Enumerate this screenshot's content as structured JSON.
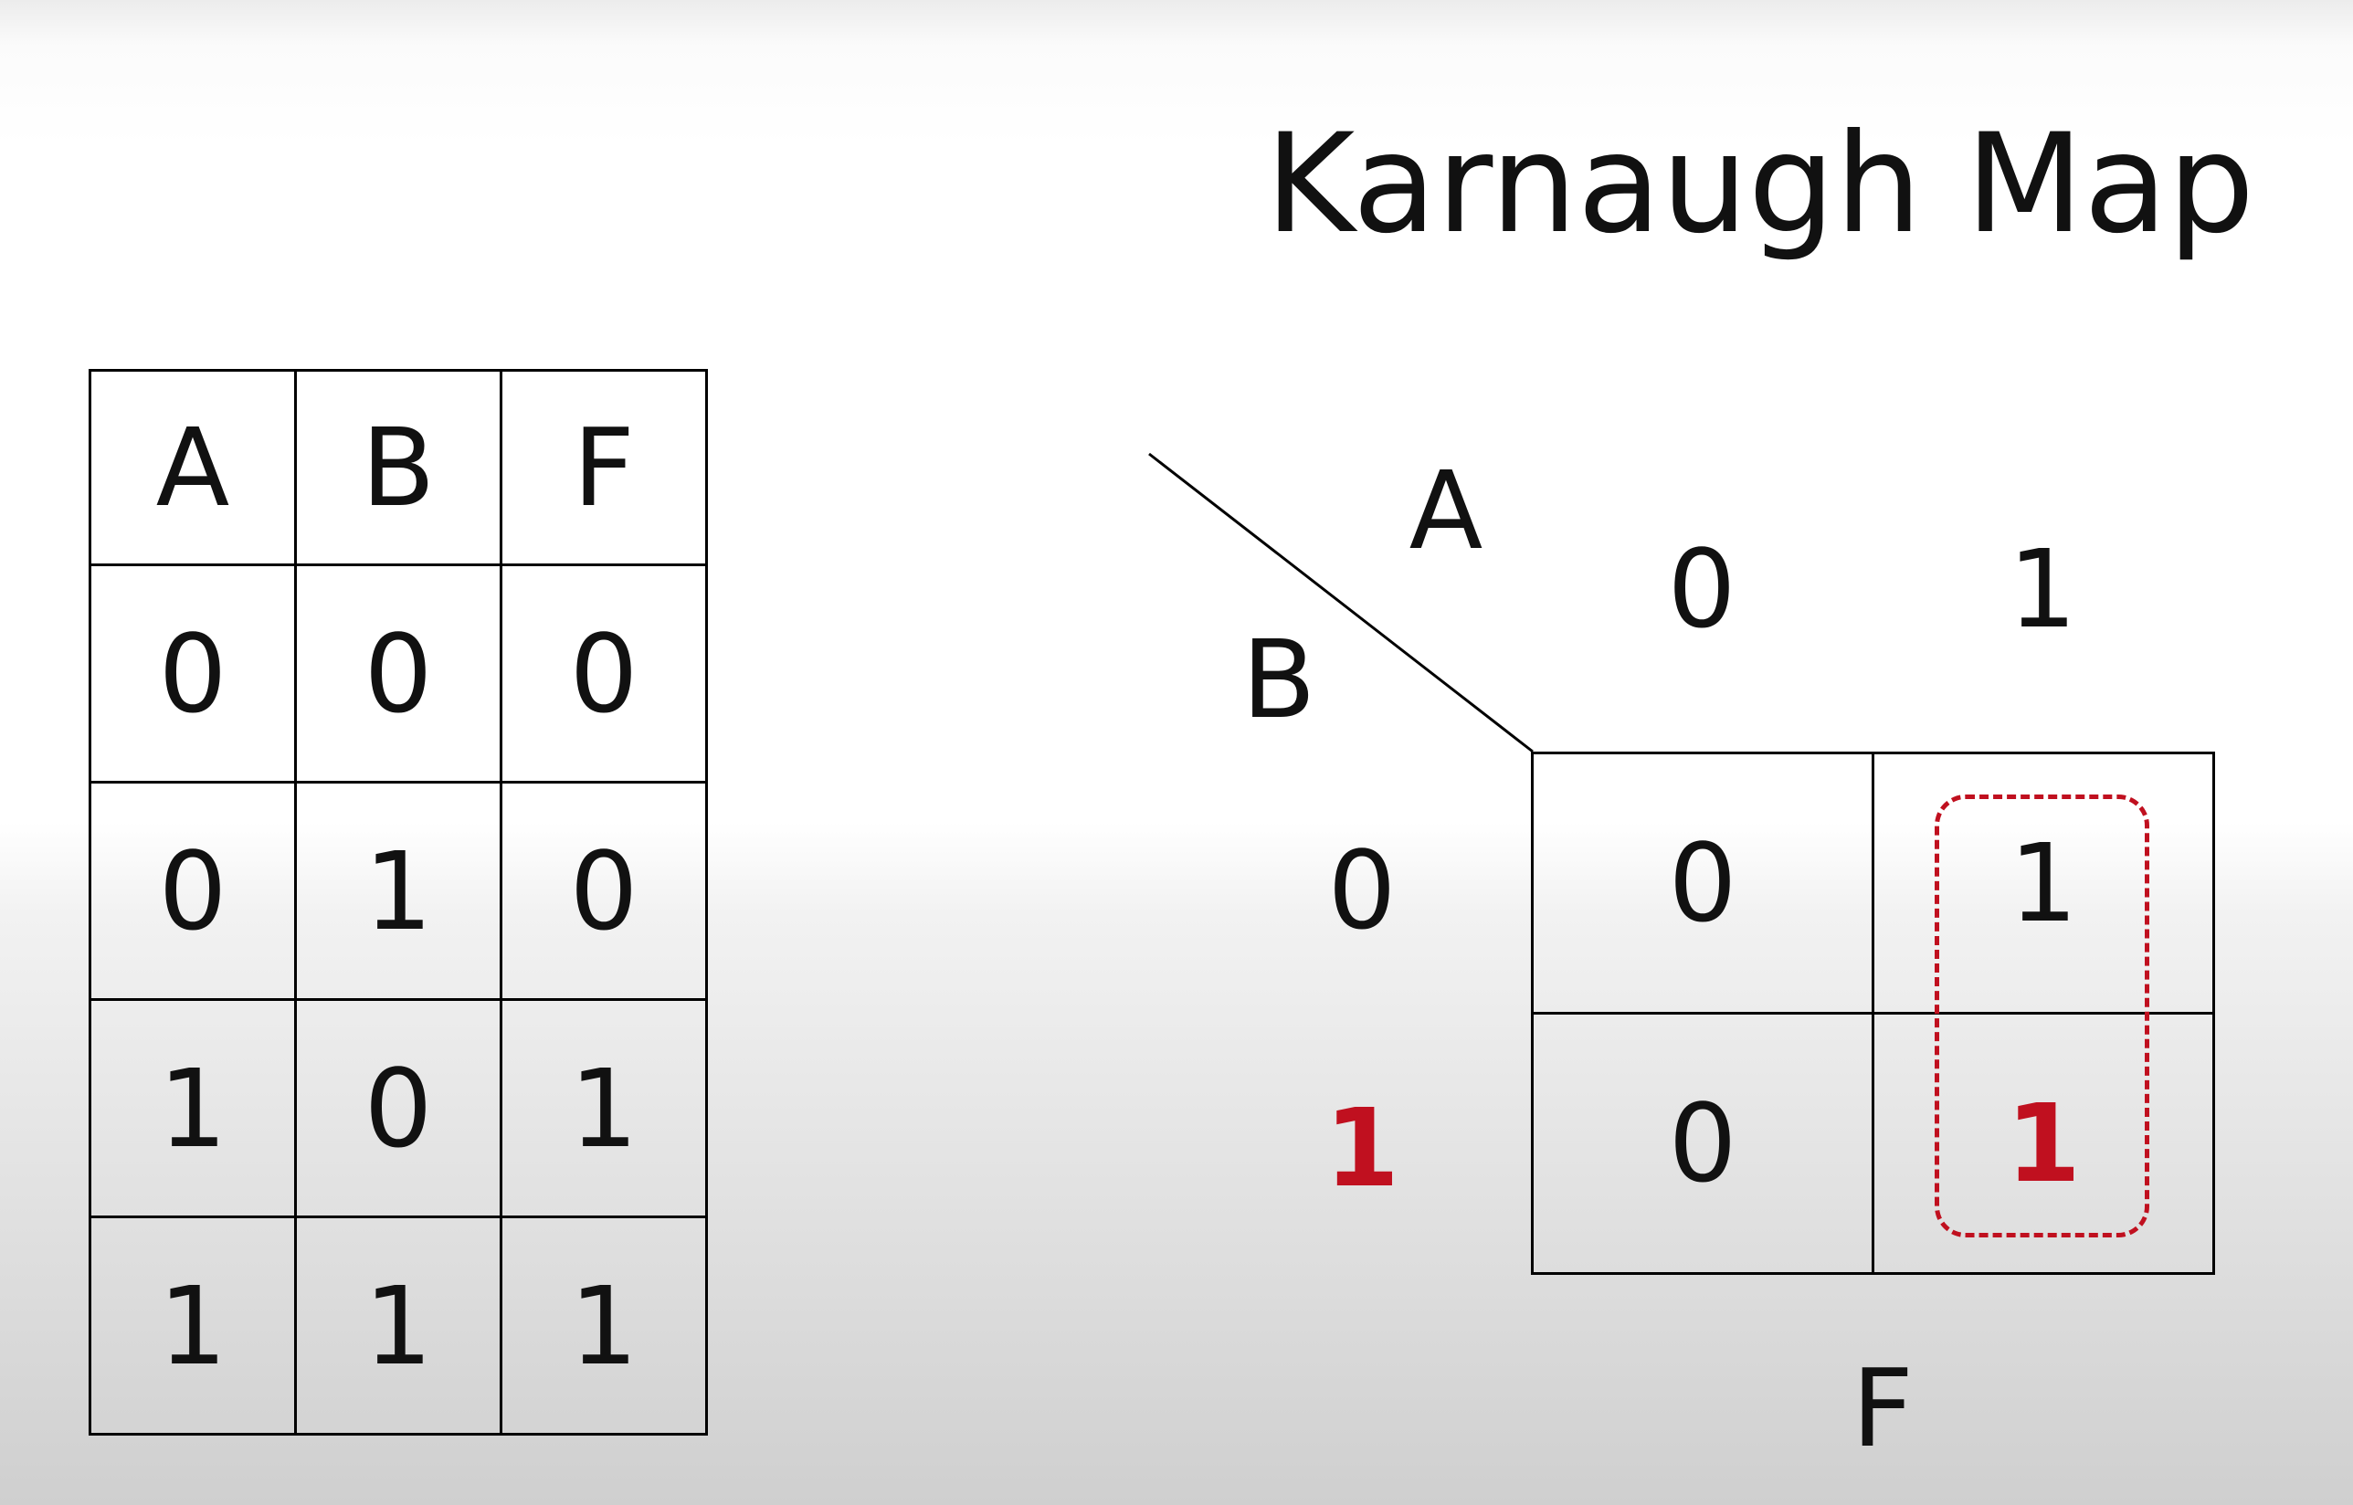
{
  "title": "Karnaugh Map",
  "truth_table": {
    "headers": [
      "A",
      "B",
      "F"
    ],
    "rows": [
      [
        "0",
        "0",
        "0"
      ],
      [
        "0",
        "1",
        "0"
      ],
      [
        "1",
        "0",
        "1"
      ],
      [
        "1",
        "1",
        "1"
      ]
    ]
  },
  "kmap": {
    "col_var": "A",
    "row_var": "B",
    "col_values": [
      "0",
      "1"
    ],
    "row_values": [
      "0",
      "1"
    ],
    "cells": [
      [
        "0",
        "1"
      ],
      [
        "0",
        "1"
      ]
    ],
    "output_label": "F",
    "highlight_color": "#c0101f"
  }
}
